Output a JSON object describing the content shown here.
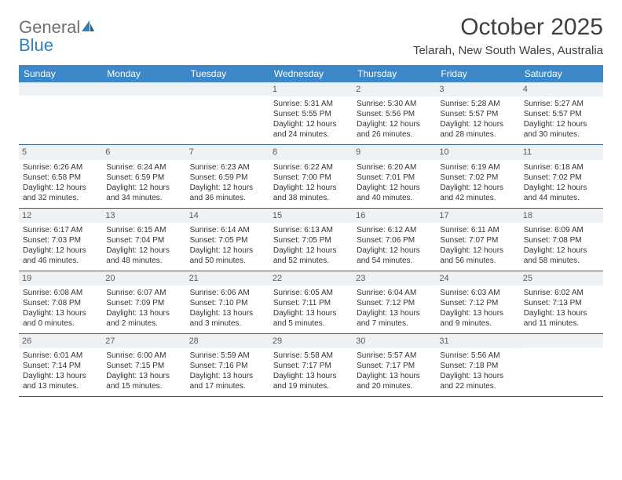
{
  "brand": {
    "word1": "General",
    "word2": "Blue"
  },
  "title": "October 2025",
  "location": "Telarah, New South Wales, Australia",
  "colors": {
    "header_bg": "#3b87c8",
    "header_text": "#ffffff",
    "border": "#2f5f87",
    "daynum_bg": "#eef2f5",
    "logo_gray": "#6f6f6f",
    "logo_blue": "#2f7fc0"
  },
  "day_names": [
    "Sunday",
    "Monday",
    "Tuesday",
    "Wednesday",
    "Thursday",
    "Friday",
    "Saturday"
  ],
  "weeks": [
    [
      {
        "n": "",
        "l1": "",
        "l2": "",
        "l3": "",
        "l4": ""
      },
      {
        "n": "",
        "l1": "",
        "l2": "",
        "l3": "",
        "l4": ""
      },
      {
        "n": "",
        "l1": "",
        "l2": "",
        "l3": "",
        "l4": ""
      },
      {
        "n": "1",
        "l1": "Sunrise: 5:31 AM",
        "l2": "Sunset: 5:55 PM",
        "l3": "Daylight: 12 hours",
        "l4": "and 24 minutes."
      },
      {
        "n": "2",
        "l1": "Sunrise: 5:30 AM",
        "l2": "Sunset: 5:56 PM",
        "l3": "Daylight: 12 hours",
        "l4": "and 26 minutes."
      },
      {
        "n": "3",
        "l1": "Sunrise: 5:28 AM",
        "l2": "Sunset: 5:57 PM",
        "l3": "Daylight: 12 hours",
        "l4": "and 28 minutes."
      },
      {
        "n": "4",
        "l1": "Sunrise: 5:27 AM",
        "l2": "Sunset: 5:57 PM",
        "l3": "Daylight: 12 hours",
        "l4": "and 30 minutes."
      }
    ],
    [
      {
        "n": "5",
        "l1": "Sunrise: 6:26 AM",
        "l2": "Sunset: 6:58 PM",
        "l3": "Daylight: 12 hours",
        "l4": "and 32 minutes."
      },
      {
        "n": "6",
        "l1": "Sunrise: 6:24 AM",
        "l2": "Sunset: 6:59 PM",
        "l3": "Daylight: 12 hours",
        "l4": "and 34 minutes."
      },
      {
        "n": "7",
        "l1": "Sunrise: 6:23 AM",
        "l2": "Sunset: 6:59 PM",
        "l3": "Daylight: 12 hours",
        "l4": "and 36 minutes."
      },
      {
        "n": "8",
        "l1": "Sunrise: 6:22 AM",
        "l2": "Sunset: 7:00 PM",
        "l3": "Daylight: 12 hours",
        "l4": "and 38 minutes."
      },
      {
        "n": "9",
        "l1": "Sunrise: 6:20 AM",
        "l2": "Sunset: 7:01 PM",
        "l3": "Daylight: 12 hours",
        "l4": "and 40 minutes."
      },
      {
        "n": "10",
        "l1": "Sunrise: 6:19 AM",
        "l2": "Sunset: 7:02 PM",
        "l3": "Daylight: 12 hours",
        "l4": "and 42 minutes."
      },
      {
        "n": "11",
        "l1": "Sunrise: 6:18 AM",
        "l2": "Sunset: 7:02 PM",
        "l3": "Daylight: 12 hours",
        "l4": "and 44 minutes."
      }
    ],
    [
      {
        "n": "12",
        "l1": "Sunrise: 6:17 AM",
        "l2": "Sunset: 7:03 PM",
        "l3": "Daylight: 12 hours",
        "l4": "and 46 minutes."
      },
      {
        "n": "13",
        "l1": "Sunrise: 6:15 AM",
        "l2": "Sunset: 7:04 PM",
        "l3": "Daylight: 12 hours",
        "l4": "and 48 minutes."
      },
      {
        "n": "14",
        "l1": "Sunrise: 6:14 AM",
        "l2": "Sunset: 7:05 PM",
        "l3": "Daylight: 12 hours",
        "l4": "and 50 minutes."
      },
      {
        "n": "15",
        "l1": "Sunrise: 6:13 AM",
        "l2": "Sunset: 7:05 PM",
        "l3": "Daylight: 12 hours",
        "l4": "and 52 minutes."
      },
      {
        "n": "16",
        "l1": "Sunrise: 6:12 AM",
        "l2": "Sunset: 7:06 PM",
        "l3": "Daylight: 12 hours",
        "l4": "and 54 minutes."
      },
      {
        "n": "17",
        "l1": "Sunrise: 6:11 AM",
        "l2": "Sunset: 7:07 PM",
        "l3": "Daylight: 12 hours",
        "l4": "and 56 minutes."
      },
      {
        "n": "18",
        "l1": "Sunrise: 6:09 AM",
        "l2": "Sunset: 7:08 PM",
        "l3": "Daylight: 12 hours",
        "l4": "and 58 minutes."
      }
    ],
    [
      {
        "n": "19",
        "l1": "Sunrise: 6:08 AM",
        "l2": "Sunset: 7:08 PM",
        "l3": "Daylight: 13 hours",
        "l4": "and 0 minutes."
      },
      {
        "n": "20",
        "l1": "Sunrise: 6:07 AM",
        "l2": "Sunset: 7:09 PM",
        "l3": "Daylight: 13 hours",
        "l4": "and 2 minutes."
      },
      {
        "n": "21",
        "l1": "Sunrise: 6:06 AM",
        "l2": "Sunset: 7:10 PM",
        "l3": "Daylight: 13 hours",
        "l4": "and 3 minutes."
      },
      {
        "n": "22",
        "l1": "Sunrise: 6:05 AM",
        "l2": "Sunset: 7:11 PM",
        "l3": "Daylight: 13 hours",
        "l4": "and 5 minutes."
      },
      {
        "n": "23",
        "l1": "Sunrise: 6:04 AM",
        "l2": "Sunset: 7:12 PM",
        "l3": "Daylight: 13 hours",
        "l4": "and 7 minutes."
      },
      {
        "n": "24",
        "l1": "Sunrise: 6:03 AM",
        "l2": "Sunset: 7:12 PM",
        "l3": "Daylight: 13 hours",
        "l4": "and 9 minutes."
      },
      {
        "n": "25",
        "l1": "Sunrise: 6:02 AM",
        "l2": "Sunset: 7:13 PM",
        "l3": "Daylight: 13 hours",
        "l4": "and 11 minutes."
      }
    ],
    [
      {
        "n": "26",
        "l1": "Sunrise: 6:01 AM",
        "l2": "Sunset: 7:14 PM",
        "l3": "Daylight: 13 hours",
        "l4": "and 13 minutes."
      },
      {
        "n": "27",
        "l1": "Sunrise: 6:00 AM",
        "l2": "Sunset: 7:15 PM",
        "l3": "Daylight: 13 hours",
        "l4": "and 15 minutes."
      },
      {
        "n": "28",
        "l1": "Sunrise: 5:59 AM",
        "l2": "Sunset: 7:16 PM",
        "l3": "Daylight: 13 hours",
        "l4": "and 17 minutes."
      },
      {
        "n": "29",
        "l1": "Sunrise: 5:58 AM",
        "l2": "Sunset: 7:17 PM",
        "l3": "Daylight: 13 hours",
        "l4": "and 19 minutes."
      },
      {
        "n": "30",
        "l1": "Sunrise: 5:57 AM",
        "l2": "Sunset: 7:17 PM",
        "l3": "Daylight: 13 hours",
        "l4": "and 20 minutes."
      },
      {
        "n": "31",
        "l1": "Sunrise: 5:56 AM",
        "l2": "Sunset: 7:18 PM",
        "l3": "Daylight: 13 hours",
        "l4": "and 22 minutes."
      },
      {
        "n": "",
        "l1": "",
        "l2": "",
        "l3": "",
        "l4": ""
      }
    ]
  ]
}
